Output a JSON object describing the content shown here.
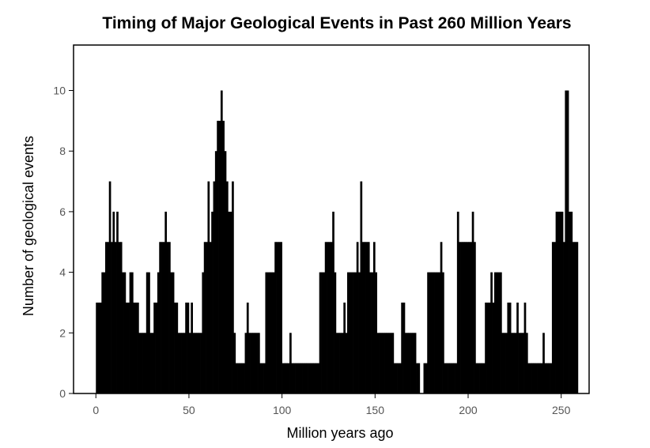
{
  "chart_data": {
    "type": "bar",
    "title": "Timing of Major Geological Events in Past 260 Million Years",
    "xlabel": "Million years ago",
    "ylabel": "Number of geological events",
    "xlim": [
      -12,
      265
    ],
    "ylim": [
      0,
      11.5
    ],
    "x_ticks": [
      0,
      50,
      100,
      150,
      200,
      250
    ],
    "y_ticks": [
      0,
      2,
      4,
      6,
      8,
      10
    ],
    "bin_width": 1,
    "bin_start": 0,
    "series": [
      {
        "name": "events",
        "values": [
          3,
          3,
          3,
          4,
          4,
          5,
          5,
          7,
          5,
          6,
          5,
          6,
          5,
          5,
          4,
          4,
          3,
          3,
          4,
          4,
          3,
          3,
          3,
          2,
          2,
          2,
          2,
          4,
          4,
          2,
          2,
          3,
          3,
          4,
          5,
          5,
          5,
          6,
          5,
          5,
          4,
          4,
          3,
          3,
          2,
          2,
          2,
          2,
          3,
          3,
          2,
          3,
          2,
          2,
          2,
          2,
          2,
          4,
          5,
          5,
          7,
          5,
          6,
          7,
          8,
          9,
          9,
          10,
          9,
          8,
          7,
          6,
          6,
          7,
          2,
          1,
          1,
          1,
          1,
          1,
          2,
          3,
          2,
          2,
          2,
          2,
          2,
          2,
          1,
          1,
          1,
          4,
          4,
          4,
          4,
          4,
          5,
          5,
          5,
          5,
          1,
          1,
          1,
          1,
          2,
          1,
          1,
          1,
          1,
          1,
          1,
          1,
          1,
          1,
          1,
          1,
          1,
          1,
          1,
          1,
          4,
          4,
          4,
          5,
          5,
          5,
          5,
          6,
          4,
          2,
          2,
          2,
          2,
          3,
          2,
          4,
          4,
          4,
          4,
          4,
          5,
          4,
          7,
          5,
          5,
          5,
          5,
          4,
          4,
          5,
          4,
          2,
          2,
          2,
          2,
          2,
          2,
          2,
          2,
          2,
          1,
          1,
          1,
          1,
          3,
          3,
          2,
          2,
          2,
          2,
          2,
          2,
          1,
          1,
          0,
          0,
          1,
          1,
          4,
          4,
          4,
          4,
          4,
          4,
          4,
          5,
          4,
          1,
          1,
          1,
          1,
          1,
          1,
          1,
          6,
          5,
          5,
          5,
          5,
          5,
          5,
          5,
          6,
          5,
          1,
          1,
          1,
          1,
          1,
          3,
          3,
          3,
          4,
          3,
          4,
          4,
          4,
          4,
          2,
          2,
          2,
          3,
          3,
          2,
          2,
          2,
          3,
          2,
          2,
          2,
          3,
          2,
          1,
          1,
          1,
          1,
          1,
          1,
          1,
          1,
          2,
          1,
          1,
          1,
          1,
          5,
          5,
          6,
          6,
          6,
          6,
          5,
          10,
          10,
          6,
          6,
          5,
          5,
          5
        ]
      }
    ]
  }
}
